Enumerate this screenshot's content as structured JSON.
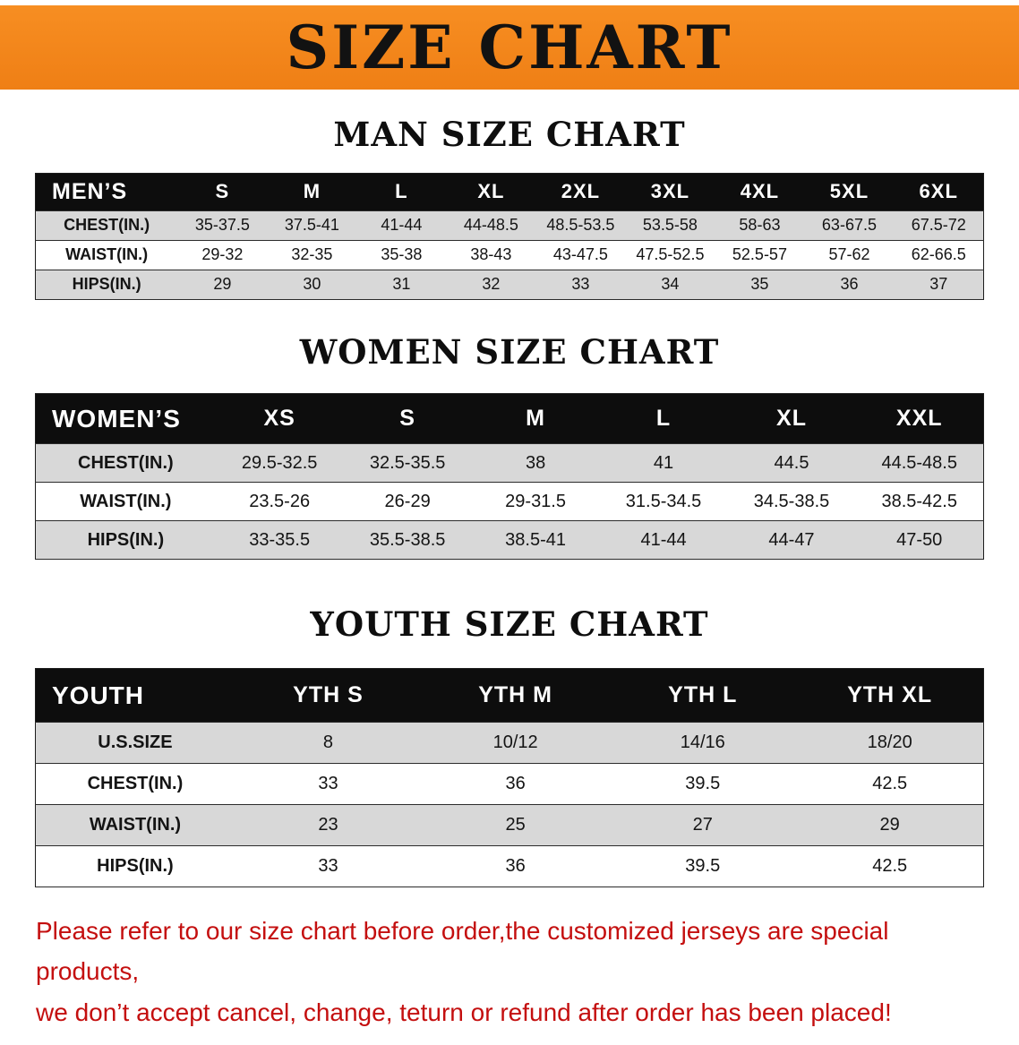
{
  "banner": {
    "title": "SIZE CHART"
  },
  "colors": {
    "banner_orange": "#F5831F",
    "header_black": "#0D0D0D",
    "stripe_gray": "#D8D8D8",
    "note_red": "#C40F0F"
  },
  "chart_data": [
    {
      "type": "table",
      "title": "MAN SIZE CHART",
      "columns": [
        "MEN’S",
        "S",
        "M",
        "L",
        "XL",
        "2XL",
        "3XL",
        "4XL",
        "5XL",
        "6XL"
      ],
      "rows": [
        [
          "CHEST(IN.)",
          "35-37.5",
          "37.5-41",
          "41-44",
          "44-48.5",
          "48.5-53.5",
          "53.5-58",
          "58-63",
          "63-67.5",
          "67.5-72"
        ],
        [
          "WAIST(IN.)",
          "29-32",
          "32-35",
          "35-38",
          "38-43",
          "43-47.5",
          "47.5-52.5",
          "52.5-57",
          "57-62",
          "62-66.5"
        ],
        [
          "HIPS(IN.)",
          "29",
          "30",
          "31",
          "32",
          "33",
          "34",
          "35",
          "36",
          "37"
        ]
      ]
    },
    {
      "type": "table",
      "title": "WOMEN SIZE CHART",
      "columns": [
        "WOMEN’S",
        "XS",
        "S",
        "M",
        "L",
        "XL",
        "XXL"
      ],
      "rows": [
        [
          "CHEST(IN.)",
          "29.5-32.5",
          "32.5-35.5",
          "38",
          "41",
          "44.5",
          "44.5-48.5"
        ],
        [
          "WAIST(IN.)",
          "23.5-26",
          "26-29",
          "29-31.5",
          "31.5-34.5",
          "34.5-38.5",
          "38.5-42.5"
        ],
        [
          "HIPS(IN.)",
          "33-35.5",
          "35.5-38.5",
          "38.5-41",
          "41-44",
          "44-47",
          "47-50"
        ]
      ]
    },
    {
      "type": "table",
      "title": "YOUTH SIZE CHART",
      "columns": [
        "YOUTH",
        "YTH S",
        "YTH M",
        "YTH L",
        "YTH XL"
      ],
      "rows": [
        [
          "U.S.SIZE",
          "8",
          "10/12",
          "14/16",
          "18/20"
        ],
        [
          "CHEST(IN.)",
          "33",
          "36",
          "39.5",
          "42.5"
        ],
        [
          "WAIST(IN.)",
          "23",
          "25",
          "27",
          "29"
        ],
        [
          "HIPS(IN.)",
          "33",
          "36",
          "39.5",
          "42.5"
        ]
      ]
    }
  ],
  "footer": {
    "line1": "Please refer to our size chart before order,the customized jerseys are special products,",
    "line2": "we don’t accept cancel, change, teturn or refund after order has been placed!"
  }
}
